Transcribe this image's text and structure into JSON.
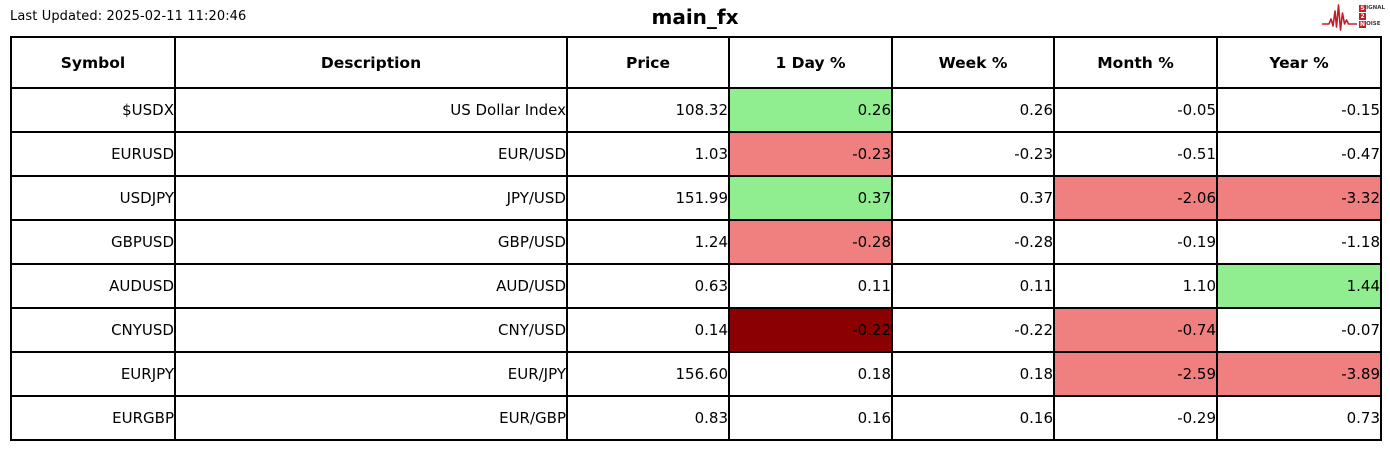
{
  "header": {
    "last_updated": "Last Updated: 2025-02-11 11:20:46",
    "title": "main_fx"
  },
  "logo": {
    "line1_initial": "S",
    "line1_rest": "IGNAL",
    "line2_initial": "2",
    "line2_rest": "",
    "line3_initial": "N",
    "line3_rest": "OISE",
    "accent_color": "#c41e25"
  },
  "colors": {
    "positive": "#90EE90",
    "negative": "#F08080",
    "strong_negative": "#8B0000",
    "border": "#000000"
  },
  "chart_data": {
    "type": "table",
    "title": "main_fx",
    "columns": [
      "Symbol",
      "Description",
      "Price",
      "1 Day %",
      "Week %",
      "Month %",
      "Year %"
    ],
    "column_keys": [
      "symbol",
      "description",
      "price",
      "1-day-pct",
      "week-pct",
      "month-pct",
      "year-pct"
    ],
    "rows": [
      [
        "$USDX",
        "US Dollar Index",
        "108.32",
        "0.26",
        "0.26",
        "-0.05",
        "-0.15"
      ],
      [
        "EURUSD",
        "EUR/USD",
        "1.03",
        "-0.23",
        "-0.23",
        "-0.51",
        "-0.47"
      ],
      [
        "USDJPY",
        "JPY/USD",
        "151.99",
        "0.37",
        "0.37",
        "-2.06",
        "-3.32"
      ],
      [
        "GBPUSD",
        "GBP/USD",
        "1.24",
        "-0.28",
        "-0.28",
        "-0.19",
        "-1.18"
      ],
      [
        "AUDUSD",
        "AUD/USD",
        "0.63",
        "0.11",
        "0.11",
        "1.10",
        "1.44"
      ],
      [
        "CNYUSD",
        "CNY/USD",
        "0.14",
        "-0.22",
        "-0.22",
        "-0.74",
        "-0.07"
      ],
      [
        "EURJPY",
        "EUR/JPY",
        "156.60",
        "0.18",
        "0.18",
        "-2.59",
        "-3.89"
      ],
      [
        "EURGBP",
        "EUR/GBP",
        "0.83",
        "0.16",
        "0.16",
        "-0.29",
        "0.73"
      ]
    ],
    "cell_highlights": [
      {
        "row": 0,
        "col": 3,
        "color": "positive"
      },
      {
        "row": 1,
        "col": 3,
        "color": "negative"
      },
      {
        "row": 2,
        "col": 3,
        "color": "positive"
      },
      {
        "row": 2,
        "col": 5,
        "color": "negative"
      },
      {
        "row": 2,
        "col": 6,
        "color": "negative"
      },
      {
        "row": 3,
        "col": 3,
        "color": "negative"
      },
      {
        "row": 4,
        "col": 6,
        "color": "positive"
      },
      {
        "row": 5,
        "col": 3,
        "color": "strong_negative"
      },
      {
        "row": 5,
        "col": 5,
        "color": "negative"
      },
      {
        "row": 6,
        "col": 5,
        "color": "negative"
      },
      {
        "row": 6,
        "col": 6,
        "color": "negative"
      }
    ]
  }
}
